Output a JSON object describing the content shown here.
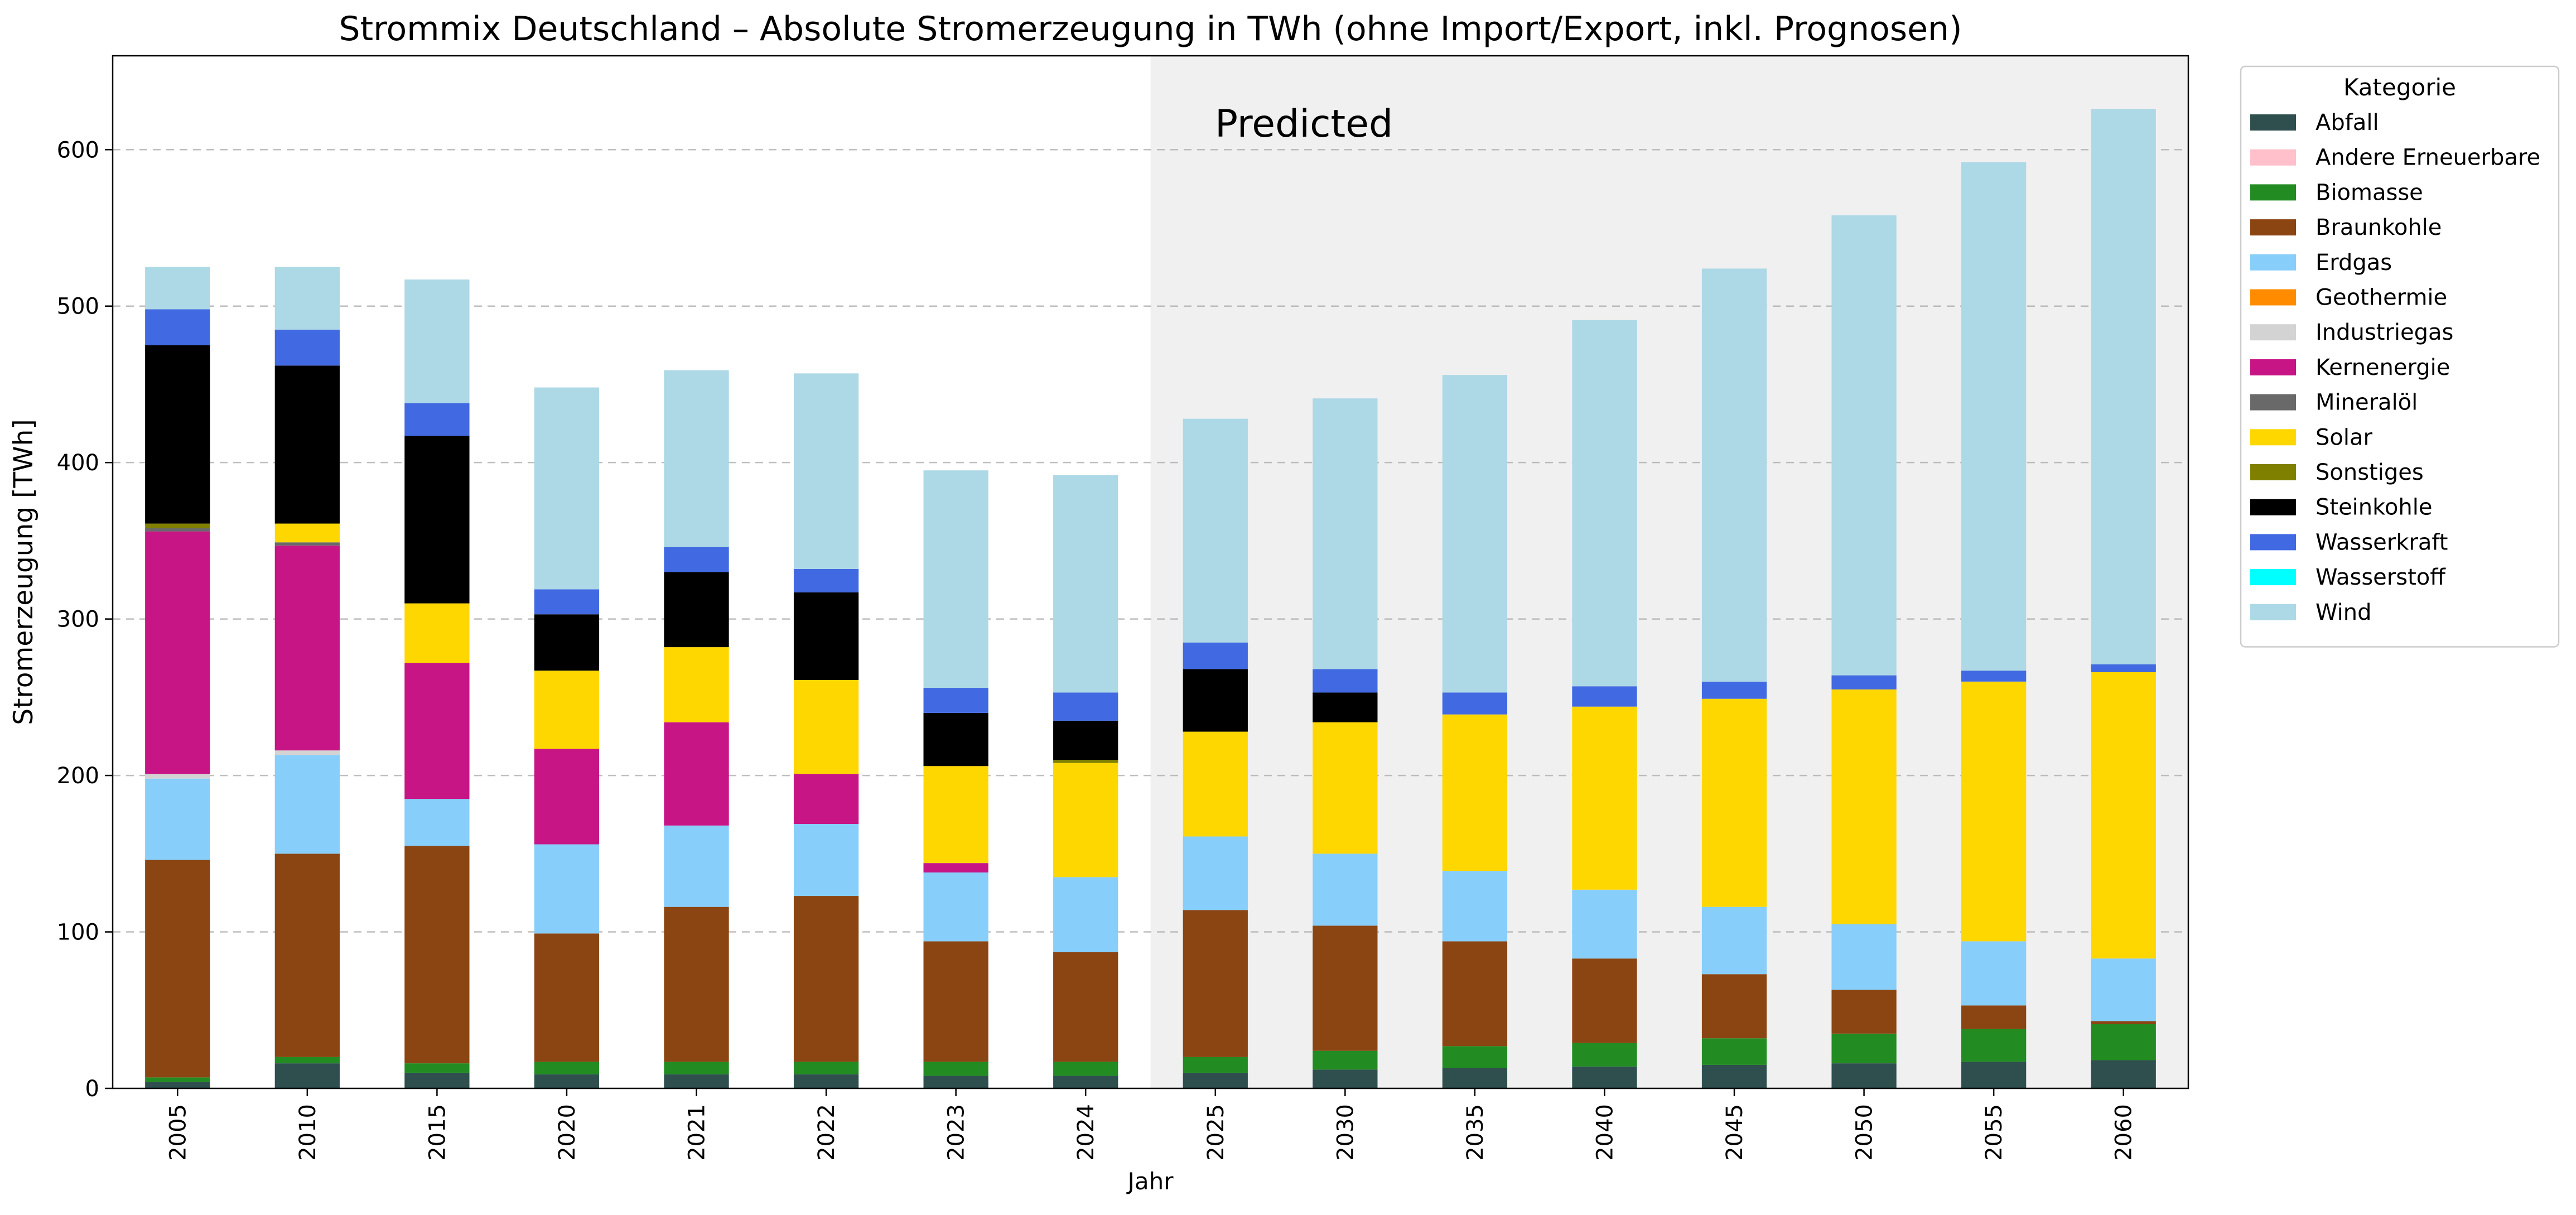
{
  "chart_data": {
    "type": "bar",
    "stacked": true,
    "title": "Strommix Deutschland – Absolute Stromerzeugung in TWh (ohne Import/Export, inkl. Prognosen)",
    "xlabel": "Jahr",
    "ylabel": "Stromerzeugung [TWh]",
    "ylim": [
      0,
      660
    ],
    "yticks": [
      0,
      100,
      200,
      300,
      400,
      500,
      600
    ],
    "grid": "horizontal dashed",
    "legend_title": "Kategorie",
    "legend_position": "outside-right-top",
    "annotation": "Predicted",
    "predicted_from_category": "2025",
    "predicted_region_color": "#f0f0f0",
    "categories": [
      "2005",
      "2010",
      "2015",
      "2020",
      "2021",
      "2022",
      "2023",
      "2024",
      "2025",
      "2030",
      "2035",
      "2040",
      "2045",
      "2050",
      "2055",
      "2060"
    ],
    "series": [
      {
        "name": "Abfall",
        "color": "#2f4f4f",
        "values": [
          4,
          16,
          10,
          9,
          9,
          9,
          8,
          8,
          10,
          12,
          13,
          14,
          15,
          16,
          17,
          18
        ]
      },
      {
        "name": "Andere Erneuerbare",
        "color": "#ffc0cb",
        "values": [
          0,
          0,
          0,
          0,
          0,
          0,
          0,
          0,
          0,
          0,
          0,
          0,
          0,
          0,
          0,
          0
        ]
      },
      {
        "name": "Biomasse",
        "color": "#228b22",
        "values": [
          3,
          4,
          6,
          8,
          8,
          8,
          9,
          9,
          10,
          12,
          14,
          15,
          17,
          19,
          21,
          23
        ]
      },
      {
        "name": "Braunkohle",
        "color": "#8b4513",
        "values": [
          139,
          130,
          139,
          82,
          99,
          106,
          77,
          70,
          94,
          80,
          67,
          54,
          41,
          28,
          15,
          2
        ]
      },
      {
        "name": "Erdgas",
        "color": "#87cefa",
        "values": [
          52,
          63,
          30,
          57,
          52,
          46,
          44,
          48,
          47,
          46,
          45,
          44,
          43,
          42,
          41,
          40
        ]
      },
      {
        "name": "Geothermie",
        "color": "#ff8c00",
        "values": [
          0,
          0,
          0,
          0,
          0,
          0,
          0,
          0,
          0,
          0,
          0,
          0,
          0,
          0,
          0,
          0
        ]
      },
      {
        "name": "Industriegas",
        "color": "#d3d3d3",
        "values": [
          3,
          3,
          0,
          0,
          0,
          0,
          0,
          0,
          0,
          0,
          0,
          0,
          0,
          0,
          0,
          0
        ]
      },
      {
        "name": "Kernenergie",
        "color": "#c71585",
        "values": [
          155,
          131,
          87,
          61,
          66,
          32,
          6,
          0,
          0,
          0,
          0,
          0,
          0,
          0,
          0,
          0
        ]
      },
      {
        "name": "Mineralöl",
        "color": "#696969",
        "values": [
          2,
          2,
          0,
          0,
          0,
          0,
          0,
          0,
          0,
          0,
          0,
          0,
          0,
          0,
          0,
          0
        ]
      },
      {
        "name": "Solar",
        "color": "#ffd700",
        "values": [
          0,
          12,
          38,
          50,
          48,
          60,
          62,
          73,
          67,
          84,
          100,
          117,
          133,
          150,
          166,
          183
        ]
      },
      {
        "name": "Sonstiges",
        "color": "#808000",
        "values": [
          3,
          0,
          0,
          0,
          0,
          0,
          0,
          2,
          0,
          0,
          0,
          0,
          0,
          0,
          0,
          0
        ]
      },
      {
        "name": "Steinkohle",
        "color": "#000000",
        "values": [
          114,
          101,
          107,
          36,
          48,
          56,
          34,
          25,
          40,
          19,
          0,
          0,
          0,
          0,
          0,
          0
        ]
      },
      {
        "name": "Wasserkraft",
        "color": "#4169e1",
        "values": [
          23,
          23,
          21,
          16,
          16,
          15,
          16,
          18,
          17,
          15,
          14,
          13,
          11,
          9,
          7,
          5
        ]
      },
      {
        "name": "Wasserstoff",
        "color": "#00ffff",
        "values": [
          0,
          0,
          0,
          0,
          0,
          0,
          0,
          0,
          0,
          0,
          0,
          0,
          0,
          0,
          0,
          0
        ]
      },
      {
        "name": "Wind",
        "color": "#add8e6",
        "values": [
          27,
          40,
          79,
          129,
          113,
          125,
          139,
          139,
          143,
          173,
          203,
          234,
          264,
          294,
          325,
          355
        ]
      }
    ]
  }
}
